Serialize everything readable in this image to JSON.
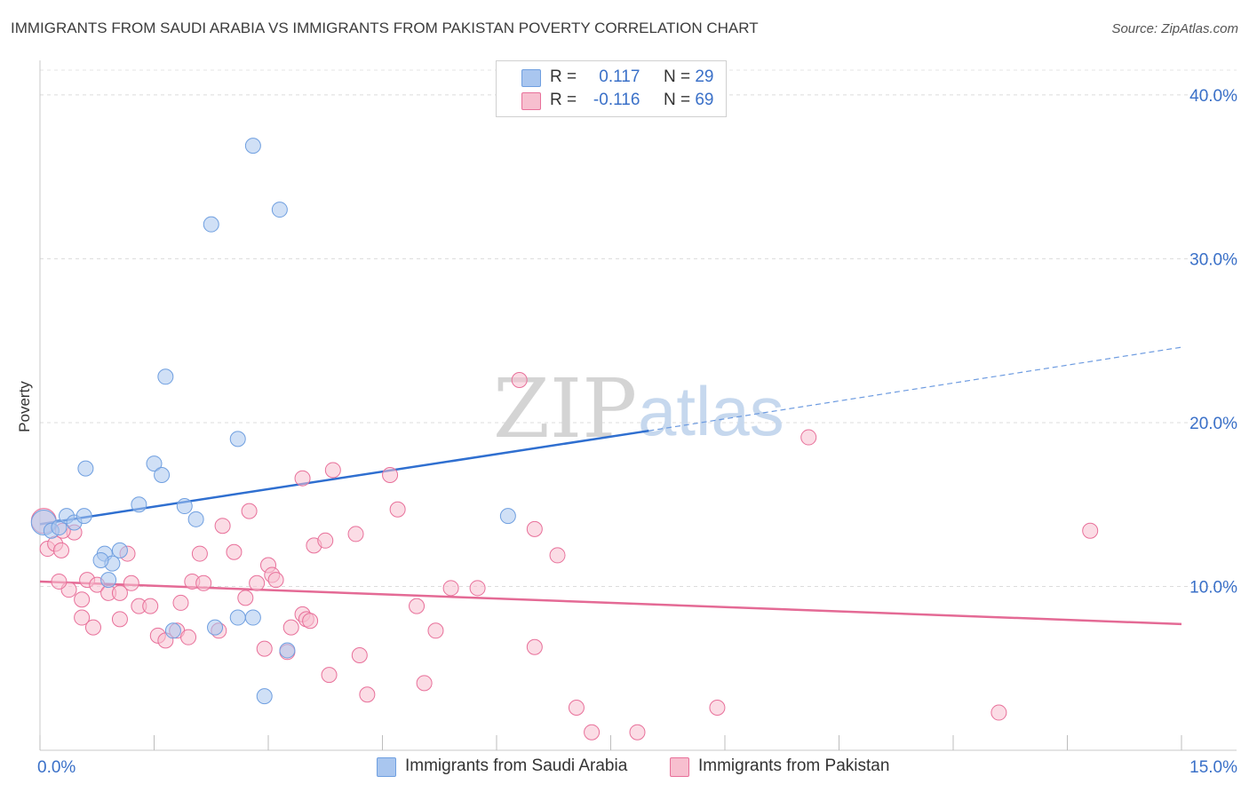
{
  "title": "IMMIGRANTS FROM SAUDI ARABIA VS IMMIGRANTS FROM PAKISTAN POVERTY CORRELATION CHART",
  "source": "Source: ZipAtlas.com",
  "watermark": {
    "zip": "ZIP",
    "atlas": "atlas"
  },
  "legend": {
    "r_label": "R =",
    "n_label": "N =",
    "rows": [
      {
        "r": "0.117",
        "n": "29",
        "color": "#a9c6ef"
      },
      {
        "r": "-0.116",
        "n": "69",
        "color": "#f7bfcf"
      }
    ]
  },
  "chart_data": {
    "type": "scatter",
    "title": "IMMIGRANTS FROM SAUDI ARABIA VS IMMIGRANTS FROM PAKISTAN POVERTY CORRELATION CHART",
    "xlabel": "",
    "ylabel": "Poverty",
    "xlim": [
      0,
      15
    ],
    "ylim": [
      0,
      42
    ],
    "x_tick_labels": [
      "0.0%",
      "15.0%"
    ],
    "y_ticks": [
      10,
      20,
      30,
      40
    ],
    "y_tick_labels": [
      "10.0%",
      "20.0%",
      "30.0%",
      "40.0%"
    ],
    "grid": true,
    "legend_position": "top-center",
    "series": [
      {
        "name": "Immigrants from Saudi Arabia",
        "color": "#6f9fe0",
        "fill": "#a9c6ef",
        "trend": {
          "x0": 0,
          "y0": 13.8,
          "x1": 8.0,
          "y1": 19.5,
          "x_dash_end": 15.0,
          "y_dash_end": 24.6
        },
        "points": [
          [
            0.05,
            13.9
          ],
          [
            0.15,
            13.4
          ],
          [
            0.25,
            13.6
          ],
          [
            0.35,
            14.3
          ],
          [
            0.45,
            13.9
          ],
          [
            0.58,
            14.3
          ],
          [
            0.85,
            12.0
          ],
          [
            1.05,
            12.2
          ],
          [
            0.95,
            11.4
          ],
          [
            0.8,
            11.6
          ],
          [
            0.9,
            10.4
          ],
          [
            0.6,
            17.2
          ],
          [
            1.3,
            15.0
          ],
          [
            1.5,
            17.5
          ],
          [
            1.6,
            16.8
          ],
          [
            1.9,
            14.9
          ],
          [
            2.05,
            14.1
          ],
          [
            1.65,
            22.8
          ],
          [
            2.3,
            7.5
          ],
          [
            2.6,
            8.1
          ],
          [
            2.8,
            8.1
          ],
          [
            1.75,
            7.3
          ],
          [
            2.25,
            32.1
          ],
          [
            2.8,
            36.9
          ],
          [
            3.15,
            33.0
          ],
          [
            2.6,
            19.0
          ],
          [
            2.95,
            3.3
          ],
          [
            3.25,
            6.1
          ],
          [
            6.15,
            14.3
          ]
        ]
      },
      {
        "name": "Immigrants from Pakistan",
        "color": "#e8709a",
        "fill": "#f7bfcf",
        "trend": {
          "x0": 0,
          "y0": 10.3,
          "x1": 15.0,
          "y1": 7.7
        },
        "points": [
          [
            0.05,
            14.0
          ],
          [
            0.1,
            12.3
          ],
          [
            0.2,
            12.6
          ],
          [
            0.28,
            12.2
          ],
          [
            0.45,
            13.3
          ],
          [
            0.38,
            9.8
          ],
          [
            0.55,
            9.2
          ],
          [
            0.62,
            10.4
          ],
          [
            0.75,
            10.1
          ],
          [
            0.7,
            7.5
          ],
          [
            0.9,
            9.6
          ],
          [
            1.05,
            9.6
          ],
          [
            1.2,
            10.2
          ],
          [
            1.3,
            8.8
          ],
          [
            1.45,
            8.8
          ],
          [
            1.55,
            7.0
          ],
          [
            1.65,
            6.7
          ],
          [
            1.8,
            7.3
          ],
          [
            1.85,
            9.0
          ],
          [
            1.95,
            6.9
          ],
          [
            2.0,
            10.3
          ],
          [
            2.15,
            10.2
          ],
          [
            2.35,
            7.3
          ],
          [
            2.4,
            13.7
          ],
          [
            2.55,
            12.1
          ],
          [
            2.7,
            9.3
          ],
          [
            2.75,
            14.6
          ],
          [
            2.85,
            10.2
          ],
          [
            2.95,
            6.2
          ],
          [
            3.0,
            11.3
          ],
          [
            3.05,
            10.7
          ],
          [
            3.1,
            10.4
          ],
          [
            3.25,
            6.0
          ],
          [
            3.3,
            7.5
          ],
          [
            3.45,
            8.3
          ],
          [
            3.5,
            8.0
          ],
          [
            3.45,
            16.6
          ],
          [
            3.6,
            12.5
          ],
          [
            3.75,
            12.8
          ],
          [
            3.8,
            4.6
          ],
          [
            3.85,
            17.1
          ],
          [
            3.55,
            7.9
          ],
          [
            4.15,
            13.2
          ],
          [
            4.2,
            5.8
          ],
          [
            4.3,
            3.4
          ],
          [
            4.6,
            16.8
          ],
          [
            4.7,
            14.7
          ],
          [
            4.95,
            8.8
          ],
          [
            5.05,
            4.1
          ],
          [
            5.2,
            7.3
          ],
          [
            5.4,
            9.9
          ],
          [
            5.75,
            9.9
          ],
          [
            6.3,
            22.6
          ],
          [
            6.5,
            13.5
          ],
          [
            6.5,
            6.3
          ],
          [
            6.8,
            11.9
          ],
          [
            7.05,
            2.6
          ],
          [
            7.25,
            1.1
          ],
          [
            7.85,
            1.1
          ],
          [
            8.9,
            2.6
          ],
          [
            10.1,
            19.1
          ],
          [
            12.6,
            2.3
          ],
          [
            13.8,
            13.4
          ],
          [
            0.25,
            10.3
          ],
          [
            1.05,
            8.0
          ],
          [
            2.1,
            12.0
          ],
          [
            1.15,
            12.0
          ],
          [
            0.55,
            8.1
          ],
          [
            0.3,
            13.4
          ]
        ]
      }
    ]
  },
  "x_axis": {
    "left_label": "0.0%",
    "right_label": "15.0%"
  },
  "bottom_legend": [
    {
      "label": "Immigrants from Saudi Arabia",
      "color": "#a9c6ef"
    },
    {
      "label": "Immigrants from Pakistan",
      "color": "#f7bfcf"
    }
  ]
}
